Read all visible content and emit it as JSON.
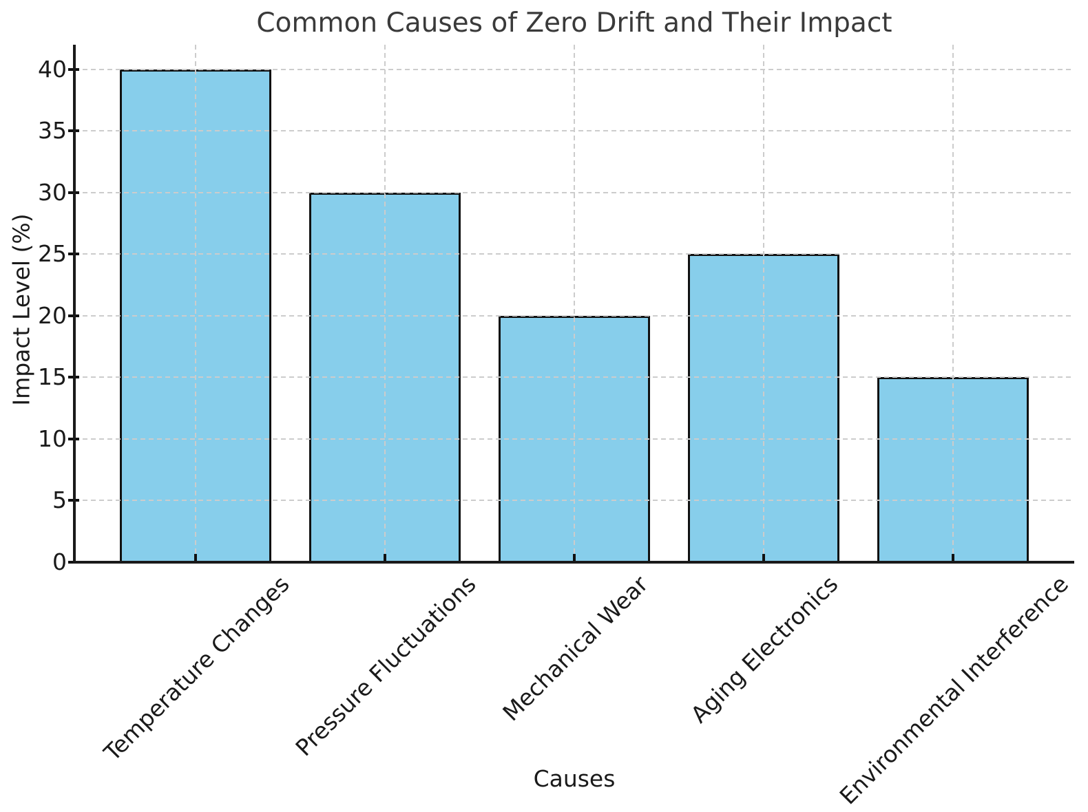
{
  "chart_data": {
    "type": "bar",
    "title": "Common Causes of Zero Drift and Their Impact",
    "xlabel": "Causes",
    "ylabel": "Impact Level (%)",
    "categories": [
      "Temperature Changes",
      "Pressure Fluctuations",
      "Mechanical Wear",
      "Aging Electronics",
      "Environmental Interference"
    ],
    "values": [
      40,
      30,
      20,
      25,
      15
    ],
    "ylim": [
      0,
      42
    ],
    "yticks": [
      0,
      5,
      10,
      15,
      20,
      25,
      30,
      35,
      40
    ],
    "grid": "dashed gridlines on both axes, drawn above bars",
    "legend": "none",
    "colors": {
      "bar_fill": "#87CEEB",
      "bar_edge": "#111111",
      "grid": "#cccccc",
      "spine": "#1a1a1a",
      "title_text": "#3a3a3a",
      "tick_text": "#1a1a1a"
    }
  }
}
